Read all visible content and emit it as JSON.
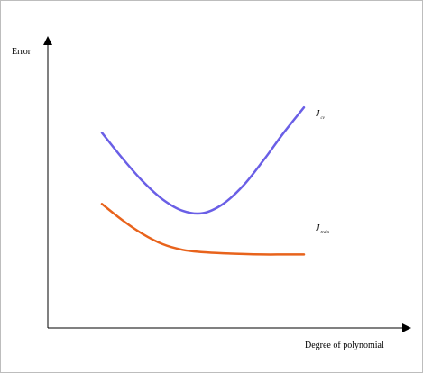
{
  "chart_data": {
    "type": "line",
    "xlabel": "Degree of polynomial",
    "ylabel": "Error",
    "x": [
      0,
      1,
      2,
      3,
      4,
      5,
      6,
      7,
      8,
      9,
      10
    ],
    "xlim": [
      0,
      10
    ],
    "ylim": [
      0,
      10
    ],
    "grid": false,
    "legend": "none",
    "series": [
      {
        "name": "J",
        "subscript": "cv",
        "color": "#6a5fe6",
        "values": [
          8.5,
          7.4,
          6.4,
          5.6,
          5.1,
          5.0,
          5.4,
          6.2,
          7.3,
          8.5,
          9.6
        ]
      },
      {
        "name": "J",
        "subscript": "train",
        "color": "#e8631c",
        "values": [
          5.4,
          4.7,
          4.1,
          3.65,
          3.4,
          3.3,
          3.25,
          3.22,
          3.2,
          3.2,
          3.2
        ]
      }
    ]
  }
}
